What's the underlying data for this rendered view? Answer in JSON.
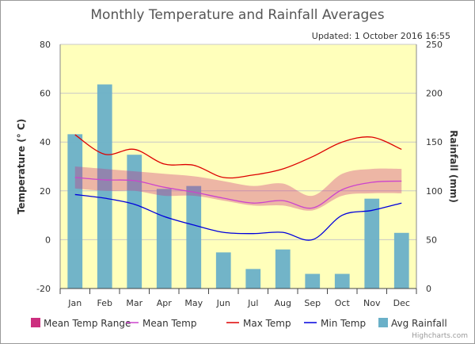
{
  "chart_data": {
    "type": "bar+line",
    "title": "Monthly Temperature and Rainfall Averages",
    "subtitle": "Updated: 1 October 2016 16:55",
    "credits": "Highcharts.com",
    "categories": [
      "Jan",
      "Feb",
      "Mar",
      "Apr",
      "May",
      "Jun",
      "Jul",
      "Aug",
      "Sep",
      "Oct",
      "Nov",
      "Dec"
    ],
    "y_left": {
      "label": "Temperature (° C)",
      "min": -20,
      "max": 80,
      "ticks": [
        -20,
        0,
        20,
        40,
        60,
        80
      ]
    },
    "y_right": {
      "label": "Rainfall (mm)",
      "min": 0,
      "max": 250,
      "ticks": [
        0,
        50,
        100,
        150,
        200,
        250
      ]
    },
    "series": [
      {
        "name": "Mean Temp Range",
        "kind": "arearange",
        "axis": "left",
        "color": "#cc2f7f",
        "low": [
          21,
          20,
          20,
          18,
          18,
          16,
          14,
          14,
          12,
          18,
          19,
          19
        ],
        "high": [
          30,
          29,
          28,
          27,
          26,
          24,
          22,
          23,
          18,
          27,
          29,
          29
        ]
      },
      {
        "name": "Mean Temp",
        "kind": "line",
        "axis": "left",
        "color": "#cc44cc",
        "values": [
          25.5,
          24.5,
          24.2,
          21.5,
          19.5,
          17,
          15,
          16,
          13,
          20.5,
          23.5,
          24
        ]
      },
      {
        "name": "Max Temp",
        "kind": "line",
        "axis": "left",
        "color": "#dd0000",
        "values": [
          43,
          35,
          37,
          31,
          30.5,
          25.5,
          26.5,
          29,
          34,
          40,
          42,
          37
        ]
      },
      {
        "name": "Min Temp",
        "kind": "line",
        "axis": "left",
        "color": "#0000dd",
        "values": [
          18.5,
          17,
          14.5,
          9.5,
          6,
          3,
          2.5,
          3,
          0,
          10,
          12,
          15
        ]
      },
      {
        "name": "Avg Rainfall",
        "kind": "bar",
        "axis": "right",
        "color": "#6ab0c8",
        "values": [
          158,
          209,
          137,
          102,
          105,
          37,
          20,
          40,
          15,
          15,
          92,
          57
        ]
      }
    ],
    "grid": true,
    "legend_position": "bottom"
  }
}
